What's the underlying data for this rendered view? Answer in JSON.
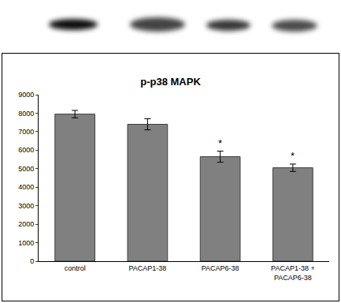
{
  "chart_data": {
    "type": "bar",
    "title": "p-p38 MAPK",
    "categories": [
      "control",
      "PACAP1-38",
      "PACAP6-38",
      "PACAP1-38 + PACAP6-38"
    ],
    "values": [
      7950,
      7400,
      5650,
      5050
    ],
    "errors": [
      200,
      300,
      300,
      200
    ],
    "color": "#808080",
    "ylim": [
      0,
      9000
    ],
    "yticks": [
      0,
      1000,
      2000,
      3000,
      4000,
      5000,
      6000,
      7000,
      8000,
      9000
    ],
    "grid": false,
    "annotations": [
      {
        "category": "PACAP6-38",
        "text": "*"
      },
      {
        "category": "PACAP1-38 + PACAP6-38",
        "text": "*"
      }
    ]
  }
}
